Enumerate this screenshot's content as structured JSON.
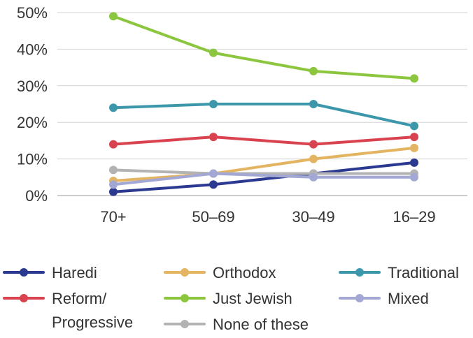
{
  "chart_data": {
    "type": "line",
    "title": "",
    "xlabel": "",
    "ylabel": "",
    "categories": [
      "70+",
      "50–69",
      "30–49",
      "16–29"
    ],
    "y_ticks": [
      "0%",
      "10%",
      "20%",
      "30%",
      "40%",
      "50%"
    ],
    "ylim": [
      0,
      50
    ],
    "grid": true,
    "legend_position": "bottom",
    "series": [
      {
        "name": "Haredi",
        "color": "#2b3990",
        "values": [
          1,
          3,
          6,
          9
        ]
      },
      {
        "name": "Reform/ Progressive",
        "color": "#d9434f",
        "values": [
          14,
          16,
          14,
          16
        ]
      },
      {
        "name": "Orthodox",
        "color": "#e3b462",
        "values": [
          4,
          6,
          10,
          13
        ]
      },
      {
        "name": "Just Jewish",
        "color": "#8cc63f",
        "values": [
          49,
          39,
          34,
          32
        ]
      },
      {
        "name": "None of these",
        "color": "#b3b3b3",
        "values": [
          7,
          6,
          6,
          6
        ]
      },
      {
        "name": "Traditional",
        "color": "#3d97aa",
        "values": [
          24,
          25,
          25,
          19
        ]
      },
      {
        "name": "Mixed",
        "color": "#a3a7d4",
        "values": [
          3,
          6,
          5,
          5
        ]
      }
    ],
    "legend": {
      "col1": [
        {
          "label_lines": [
            "Haredi"
          ],
          "series": "Haredi"
        },
        {
          "label_lines": [
            "Reform/",
            "Progressive"
          ],
          "series": "Reform/ Progressive"
        }
      ],
      "col2": [
        {
          "label_lines": [
            "Orthodox"
          ],
          "series": "Orthodox"
        },
        {
          "label_lines": [
            "Just Jewish"
          ],
          "series": "Just Jewish"
        },
        {
          "label_lines": [
            "None of these"
          ],
          "series": "None of these"
        }
      ],
      "col3": [
        {
          "label_lines": [
            "Traditional"
          ],
          "series": "Traditional"
        },
        {
          "label_lines": [
            "Mixed"
          ],
          "series": "Mixed"
        }
      ]
    }
  }
}
